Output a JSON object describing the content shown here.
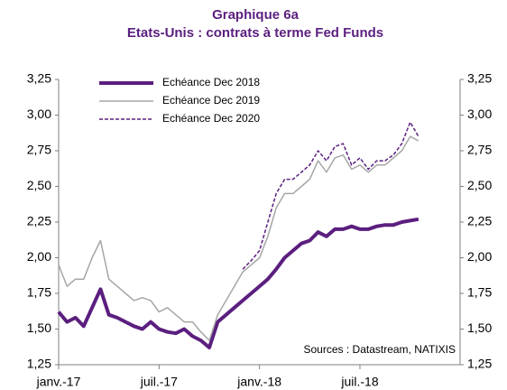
{
  "chart_data": {
    "type": "line",
    "title": "Graphique 6a",
    "subtitle": "Etats-Unis : contrats à terme Fed Funds",
    "annotation": "Sources : Datastream, NATIXIS",
    "categories": [
      "janv.-17",
      null,
      null,
      null,
      null,
      null,
      null,
      null,
      null,
      null,
      null,
      null,
      "juil.-17",
      null,
      null,
      null,
      null,
      null,
      null,
      null,
      null,
      null,
      null,
      null,
      "janv.-18",
      null,
      null,
      null,
      null,
      null,
      null,
      null,
      null,
      null,
      null,
      null,
      "juil.-18",
      null,
      null,
      null,
      null,
      null,
      null,
      null
    ],
    "series": [
      {
        "name": "Echéance Dec 2018",
        "color": "#5b1f7f",
        "width": 4,
        "dash": false,
        "values": [
          1.62,
          1.55,
          1.58,
          1.52,
          1.65,
          1.78,
          1.6,
          1.58,
          1.55,
          1.52,
          1.5,
          1.55,
          1.5,
          1.48,
          1.47,
          1.5,
          1.45,
          1.42,
          1.37,
          1.55,
          1.6,
          1.65,
          1.7,
          1.75,
          1.8,
          1.85,
          1.92,
          2.0,
          2.05,
          2.1,
          2.12,
          2.18,
          2.15,
          2.2,
          2.2,
          2.22,
          2.2,
          2.2,
          2.22,
          2.23,
          2.23,
          2.25,
          2.26,
          2.27
        ]
      },
      {
        "name": "Echéance Dec 2019",
        "color": "#a6a6a6",
        "width": 1.5,
        "dash": false,
        "values": [
          1.95,
          1.8,
          1.85,
          1.85,
          2.0,
          2.12,
          1.85,
          1.8,
          1.75,
          1.7,
          1.72,
          1.7,
          1.62,
          1.65,
          1.6,
          1.55,
          1.55,
          1.48,
          1.42,
          1.6,
          1.7,
          1.8,
          1.9,
          1.95,
          2.0,
          2.15,
          2.35,
          2.45,
          2.45,
          2.5,
          2.55,
          2.68,
          2.6,
          2.7,
          2.72,
          2.62,
          2.65,
          2.6,
          2.65,
          2.65,
          2.7,
          2.75,
          2.85,
          2.82
        ]
      },
      {
        "name": "Echéance Dec 2020",
        "color": "#5b1f7f",
        "width": 1.5,
        "dash": true,
        "values": [
          null,
          null,
          null,
          null,
          null,
          null,
          null,
          null,
          null,
          null,
          null,
          null,
          null,
          null,
          null,
          null,
          null,
          null,
          null,
          null,
          null,
          null,
          1.92,
          1.98,
          2.05,
          2.25,
          2.45,
          2.55,
          2.55,
          2.6,
          2.65,
          2.75,
          2.68,
          2.78,
          2.8,
          2.65,
          2.7,
          2.62,
          2.68,
          2.68,
          2.72,
          2.8,
          2.95,
          2.85
        ]
      }
    ],
    "ylim": [
      1.25,
      3.25
    ],
    "yticks": [
      {
        "value": 1.25,
        "label": "1,25"
      },
      {
        "value": 1.5,
        "label": "1,50"
      },
      {
        "value": 1.75,
        "label": "1,75"
      },
      {
        "value": 2.0,
        "label": "2,00"
      },
      {
        "value": 2.25,
        "label": "2,25"
      },
      {
        "value": 2.5,
        "label": "2,50"
      },
      {
        "value": 2.75,
        "label": "2,75"
      },
      {
        "value": 3.0,
        "label": "3,00"
      },
      {
        "value": 3.25,
        "label": "3,25"
      }
    ],
    "y2lim": [
      1.25,
      3.25
    ],
    "y2ticks": [
      {
        "value": 1.25,
        "label": "1,25"
      },
      {
        "value": 1.5,
        "label": "1,50"
      },
      {
        "value": 1.75,
        "label": "1,75"
      },
      {
        "value": 2.0,
        "label": "2,00"
      },
      {
        "value": 2.25,
        "label": "2,25"
      },
      {
        "value": 2.5,
        "label": "2,50"
      },
      {
        "value": 2.75,
        "label": "2,75"
      },
      {
        "value": 3.0,
        "label": "3,00"
      },
      {
        "value": 3.25,
        "label": "3,25"
      }
    ],
    "legend": "top-left"
  }
}
